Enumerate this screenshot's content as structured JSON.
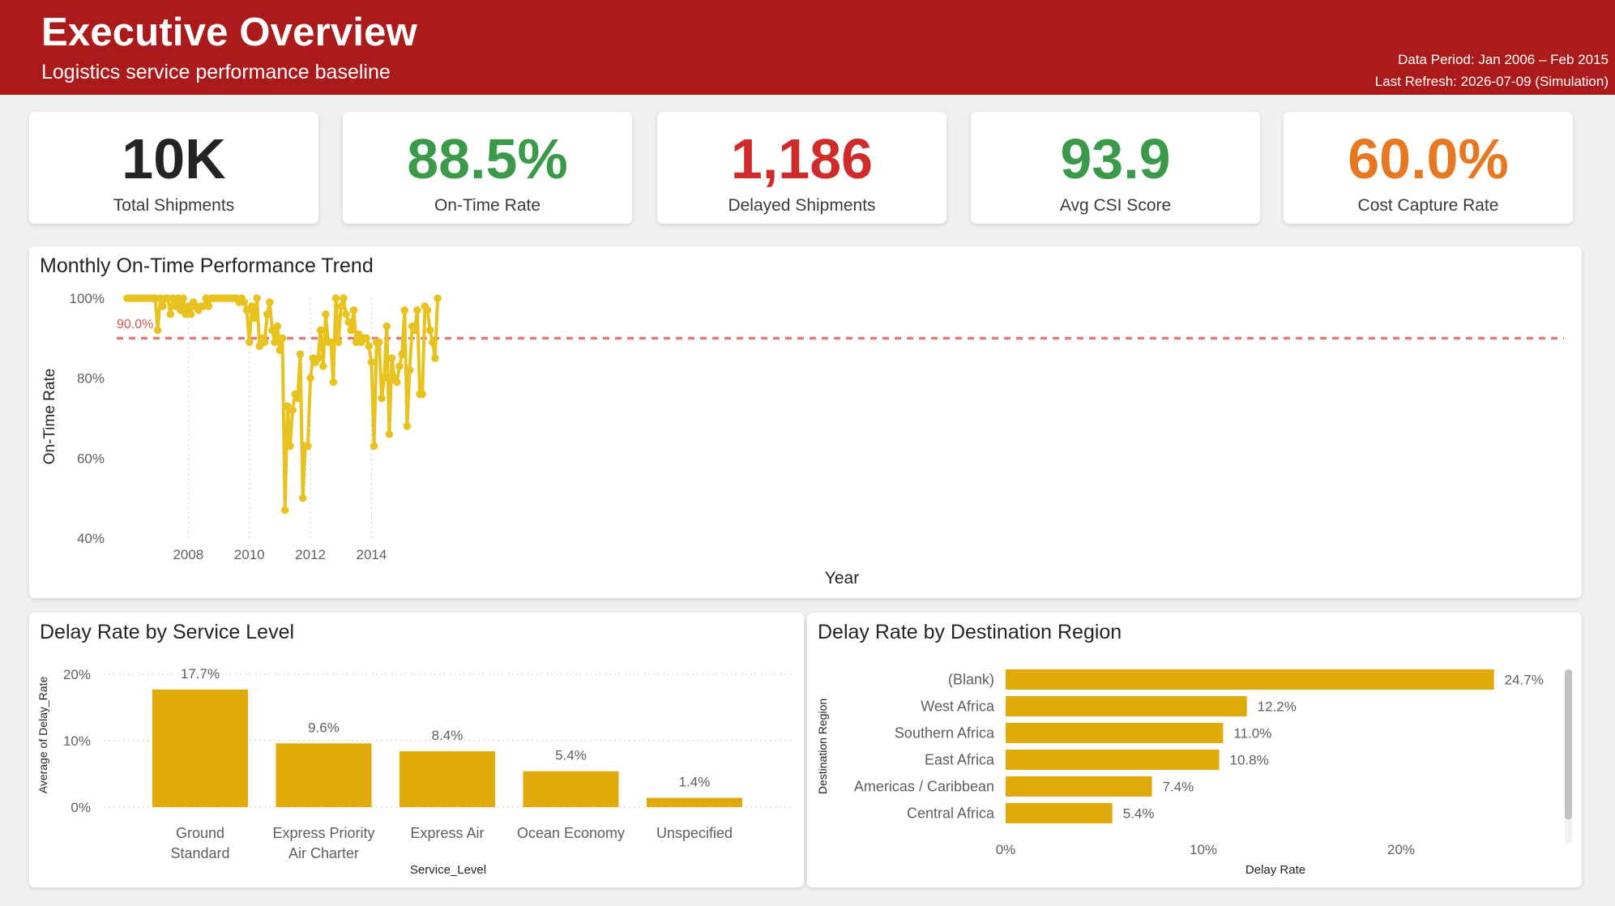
{
  "header": {
    "title": "Executive Overview",
    "subtitle": "Logistics service performance baseline",
    "data_period": "Data Period: Jan 2006 – Feb 2015",
    "last_refresh": "Last Refresh: 2026-07-09 (Simulation)",
    "background_color": "#ab1b1b"
  },
  "kpis": [
    {
      "value": "10K",
      "label": "Total Shipments",
      "color": "#252423"
    },
    {
      "value": "88.5%",
      "label": "On-Time Rate",
      "color": "#3a9a4a"
    },
    {
      "value": "1,186",
      "label": "Delayed Shipments",
      "color": "#cf2b2b"
    },
    {
      "value": "93.9",
      "label": "Avg CSI Score",
      "color": "#3a9a4a"
    },
    {
      "value": "60.0%",
      "label": "Cost Capture Rate",
      "color": "#e87722"
    }
  ],
  "trend": {
    "title": "Monthly On-Time Performance Trend",
    "reference_label": "90.0%",
    "chart_data": {
      "type": "line",
      "title": "Monthly On-Time Performance Trend",
      "xlabel": "Year",
      "ylabel": "On-Time Rate",
      "x_start": "2006-01",
      "x_ticks": [
        "2008",
        "2010",
        "2012",
        "2014"
      ],
      "y_ticks": [
        "40%",
        "60%",
        "80%",
        "100%"
      ],
      "ylim": [
        40,
        100
      ],
      "reference_line": 90,
      "grid": "vertical dotted",
      "line_color": "#e8c21e",
      "reference_color": "#e07a7a",
      "series": [
        {
          "values": [
            100,
            100,
            100,
            100,
            100,
            100,
            100,
            100,
            100,
            100,
            100,
            100,
            92,
            100,
            98,
            100,
            100,
            96,
            100,
            98,
            100,
            97,
            100,
            96,
            98,
            96,
            99,
            98,
            97,
            98,
            98,
            100,
            98,
            100,
            100,
            100,
            100,
            100,
            100,
            100,
            100,
            100,
            100,
            100,
            99,
            100,
            99,
            97,
            89,
            98,
            95,
            100,
            88,
            90,
            89,
            96,
            99,
            92,
            89,
            93,
            87,
            90,
            47,
            73,
            63,
            72,
            76,
            75,
            86,
            50,
            63,
            63,
            80,
            85,
            84,
            85,
            92,
            83,
            96,
            89,
            89,
            79,
            100,
            89,
            98,
            100,
            96,
            94,
            92,
            97,
            89,
            91,
            89,
            90,
            90,
            88,
            84,
            63,
            89,
            89,
            75,
            80,
            93,
            66,
            85,
            80,
            79,
            83,
            86,
            97,
            68,
            82,
            93,
            92,
            97,
            76,
            76,
            98,
            97,
            92,
            89,
            85,
            100
          ]
        }
      ]
    }
  },
  "service_level": {
    "title": "Delay Rate by Service Level",
    "chart_data": {
      "type": "bar",
      "title": "Delay Rate by Service Level",
      "xlabel": "Service_Level",
      "ylabel": "Average of Delay_Rate",
      "categories": [
        [
          "Ground",
          "Standard"
        ],
        [
          "Express Priority",
          "Air Charter"
        ],
        [
          "Express Air"
        ],
        [
          "Ocean Economy"
        ],
        [
          "Unspecified"
        ]
      ],
      "values": [
        17.7,
        9.6,
        8.4,
        5.4,
        1.4
      ],
      "data_labels": [
        "17.7%",
        "9.6%",
        "8.4%",
        "5.4%",
        "1.4%"
      ],
      "y_ticks": [
        "0%",
        "10%",
        "20%"
      ],
      "ylim": [
        0,
        20
      ],
      "grid": "horizontal dotted",
      "bar_color": "#e1aa0b"
    }
  },
  "region": {
    "title": "Delay Rate by Destination Region",
    "chart_data": {
      "type": "bar",
      "orientation": "horizontal",
      "title": "Delay Rate by Destination Region",
      "xlabel": "Delay Rate",
      "ylabel": "Destination Region",
      "categories": [
        "(Blank)",
        "West Africa",
        "Southern Africa",
        "East Africa",
        "Americas / Caribbean",
        "Central Africa"
      ],
      "values": [
        24.7,
        12.2,
        11.0,
        10.8,
        7.4,
        5.4
      ],
      "data_labels": [
        "24.7%",
        "12.2%",
        "11.0%",
        "10.8%",
        "7.4%",
        "5.4%"
      ],
      "x_ticks": [
        "0%",
        "10%",
        "20%"
      ],
      "xlim": [
        0,
        20
      ],
      "bar_color": "#e1aa0b"
    }
  }
}
